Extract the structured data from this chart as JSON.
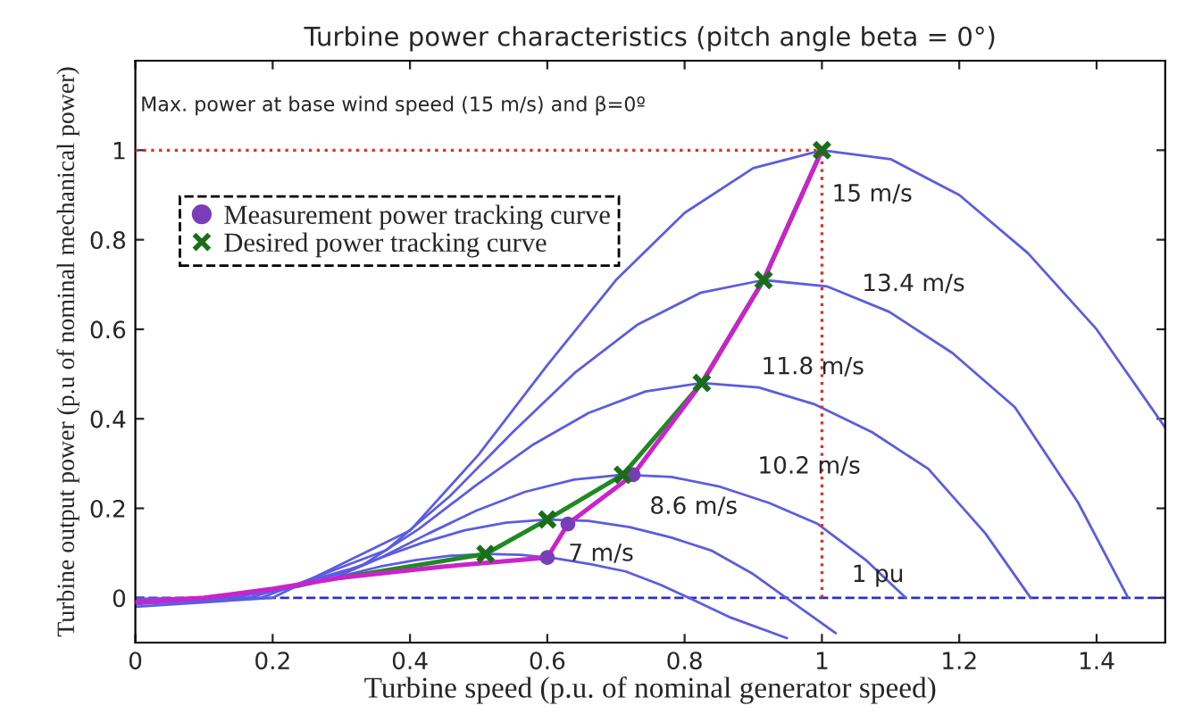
{
  "chart_data": {
    "type": "line",
    "title": "Turbine power characteristics (pitch angle beta = 0°)",
    "xlabel": "Turbine speed (p.u. of nominal generator speed)",
    "ylabel": "Turbine output power (p.u of nominal mechanical power)",
    "xlim": [
      0,
      1.5
    ],
    "xticks": [
      0,
      0.2,
      0.4,
      0.6,
      0.8,
      1,
      1.2,
      1.4
    ],
    "ylim": [
      -0.1,
      1.2
    ],
    "yticks": [
      0,
      0.2,
      0.4,
      0.6,
      0.8,
      1
    ],
    "grid": false,
    "legend": "top left",
    "series": [
      {
        "type": "line",
        "color": "#5c5ce0",
        "x": [
          0,
          0.102,
          0.204,
          0.255,
          0.306,
          0.357,
          0.408,
          0.459,
          0.51,
          0.561,
          0.612,
          0.663,
          0.714,
          0.765,
          0.806,
          0.867,
          0.949
        ],
        "values": [
          -0.002,
          0,
          0.015,
          0.031,
          0.051,
          0.07,
          0.084,
          0.094,
          0.098,
          0.096,
          0.088,
          0.075,
          0.059,
          0.029,
          0,
          -0.044,
          -0.09
        ]
      },
      {
        "type": "line",
        "color": "#5c5ce0",
        "x": [
          0,
          0.12,
          0.24,
          0.3,
          0.36,
          0.42,
          0.48,
          0.54,
          0.6,
          0.66,
          0.72,
          0.78,
          0.84,
          0.9,
          0.948,
          1.02
        ],
        "values": [
          -0.004,
          0,
          0.026,
          0.056,
          0.091,
          0.124,
          0.151,
          0.168,
          0.175,
          0.172,
          0.158,
          0.135,
          0.105,
          0.053,
          0,
          -0.079
        ]
      },
      {
        "type": "line",
        "color": "#5c5ce0",
        "x": [
          0,
          0.142,
          0.284,
          0.355,
          0.426,
          0.497,
          0.568,
          0.639,
          0.71,
          0.781,
          0.852,
          0.923,
          0.994,
          1.065,
          1.122
        ],
        "values": [
          -0.006,
          0,
          0.041,
          0.088,
          0.143,
          0.195,
          0.237,
          0.264,
          0.275,
          0.27,
          0.248,
          0.212,
          0.165,
          0.083,
          0
        ]
      },
      {
        "type": "line",
        "color": "#5c5ce0",
        "x": [
          0,
          0.165,
          0.33,
          0.413,
          0.495,
          0.578,
          0.66,
          0.743,
          0.825,
          0.908,
          0.99,
          1.073,
          1.155,
          1.238,
          1.304
        ],
        "values": [
          -0.01,
          0,
          0.072,
          0.154,
          0.25,
          0.341,
          0.413,
          0.461,
          0.48,
          0.47,
          0.432,
          0.37,
          0.288,
          0.144,
          0
        ]
      },
      {
        "type": "line",
        "color": "#5c5ce0",
        "x": [
          0,
          0.183,
          0.366,
          0.458,
          0.549,
          0.641,
          0.732,
          0.824,
          0.915,
          1.007,
          1.098,
          1.19,
          1.281,
          1.373,
          1.446
        ],
        "values": [
          -0.014,
          0,
          0.107,
          0.227,
          0.369,
          0.504,
          0.611,
          0.682,
          0.71,
          0.696,
          0.639,
          0.547,
          0.426,
          0.213,
          0
        ]
      },
      {
        "type": "line",
        "color": "#5c5ce0",
        "x": [
          0,
          0.2,
          0.4,
          0.5,
          0.6,
          0.7,
          0.8,
          0.9,
          1,
          1.1,
          1.2,
          1.3,
          1.4,
          1.5
        ],
        "values": [
          -0.02,
          0,
          0.15,
          0.32,
          0.52,
          0.71,
          0.86,
          0.96,
          1,
          0.98,
          0.9,
          0.77,
          0.6,
          0.38
        ]
      },
      {
        "type": "line",
        "color": "#e03030",
        "line_style": "dotted",
        "x": [
          0,
          1
        ],
        "values": [
          1,
          1
        ]
      },
      {
        "type": "line",
        "color": "#e03030",
        "line_style": "dotted",
        "x": [
          1,
          1
        ],
        "values": [
          0,
          1
        ]
      },
      {
        "type": "line",
        "color": "#1f8a1f",
        "x": [
          0.3,
          0.51,
          0.6,
          0.71,
          0.825,
          0.915,
          1
        ],
        "values": [
          0.045,
          0.098,
          0.175,
          0.275,
          0.48,
          0.71,
          1
        ]
      },
      {
        "type": "line",
        "color": "#cc22cc",
        "x": [
          0,
          0.1,
          0.2,
          0.3,
          0.45,
          0.6,
          0.63,
          0.725,
          0.825,
          0.915,
          1
        ],
        "values": [
          -0.01,
          0,
          0.02,
          0.045,
          0.07,
          0.09,
          0.165,
          0.275,
          0.48,
          0.71,
          1
        ]
      },
      {
        "type": "scatter",
        "name": "Measurement power tracking curve",
        "color": "#7a3db8",
        "marker": "circle",
        "x": [
          0.6,
          0.63,
          0.725
        ],
        "values": [
          0.09,
          0.165,
          0.275
        ]
      },
      {
        "type": "scatter",
        "name": "Desired power tracking curve",
        "color": "#1a6e1a",
        "marker": "cross",
        "x": [
          0.51,
          0.6,
          0.71,
          0.825,
          0.915,
          1
        ],
        "values": [
          0.098,
          0.175,
          0.275,
          0.48,
          0.71,
          1
        ]
      }
    ],
    "ref_lines": [
      {
        "axis": "y",
        "value": 0,
        "color": "#3030c0",
        "line_style": "dashed"
      }
    ],
    "annotations": [
      {
        "text": "Max. power at base wind speed (15 m/s) and β=0º",
        "x": 0,
        "y": 1
      },
      {
        "text": "15 m/s",
        "x": 1,
        "y": 1
      },
      {
        "text": "13.4 m/s",
        "x": 1.098,
        "y": 0.639
      },
      {
        "text": "11.8 m/s",
        "x": 0.908,
        "y": 0.47
      },
      {
        "text": "10.2 m/s",
        "x": 0.852,
        "y": 0.248
      },
      {
        "text": "8.6 m/s",
        "x": 0.72,
        "y": 0.158
      },
      {
        "text": "7 m/s",
        "x": 0.663,
        "y": 0.075
      },
      {
        "text": "1 pu",
        "x": 1,
        "y": 0.05
      }
    ]
  }
}
